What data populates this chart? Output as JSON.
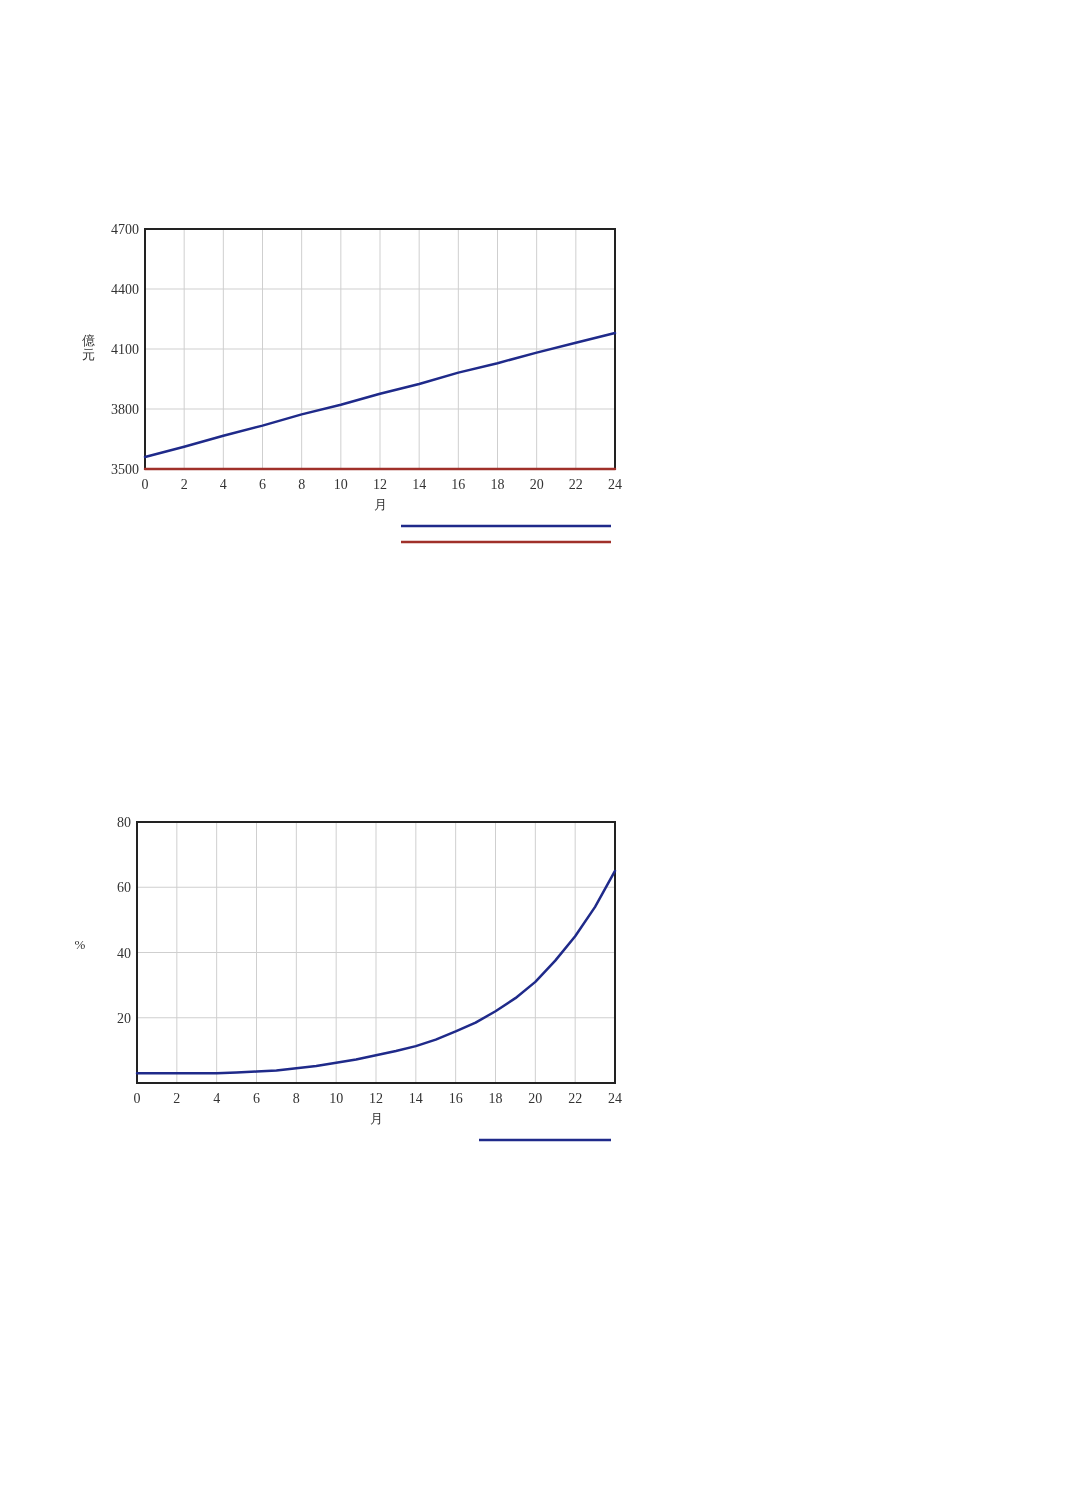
{
  "chart_data": [
    {
      "type": "line",
      "xlabel": "月",
      "ylabel": "億元",
      "x": [
        0,
        2,
        4,
        6,
        8,
        10,
        12,
        14,
        16,
        18,
        20,
        22,
        24
      ],
      "series": [
        {
          "color": "#1f2a8a",
          "values": [
            3560,
            3611,
            3666,
            3717,
            3773,
            3821,
            3876,
            3925,
            3982,
            4029,
            4082,
            4131,
            4180
          ]
        },
        {
          "color": "#a0302a",
          "values": [
            3500,
            3500,
            3500,
            3500,
            3500,
            3500,
            3500,
            3500,
            3500,
            3500,
            3500,
            3500,
            3500
          ]
        }
      ],
      "xlim": [
        0,
        24
      ],
      "xticks": [
        0,
        2,
        4,
        6,
        8,
        10,
        12,
        14,
        16,
        18,
        20,
        22,
        24
      ],
      "ylim": [
        3500,
        4700
      ],
      "yticks": [
        3500,
        3800,
        4100,
        4400,
        4700
      ],
      "grid": true
    },
    {
      "type": "line",
      "xlabel": "月",
      "ylabel": "%",
      "x": [
        0,
        2,
        4,
        5,
        6,
        7,
        8,
        9,
        10,
        11,
        12,
        13,
        14,
        15,
        16,
        17,
        18,
        19,
        20,
        21,
        22,
        23,
        24
      ],
      "series": [
        {
          "color": "#1f2a8a",
          "values": [
            3,
            3,
            3,
            3.2,
            3.5,
            3.8,
            4.5,
            5.2,
            6.2,
            7.2,
            8.5,
            9.8,
            11.3,
            13.3,
            15.8,
            18.5,
            22,
            26,
            31,
            37.5,
            45,
            54,
            65
          ]
        }
      ],
      "xlim": [
        0,
        24
      ],
      "xticks": [
        0,
        2,
        4,
        6,
        8,
        10,
        12,
        14,
        16,
        18,
        20,
        22,
        24
      ],
      "ylim": [
        0,
        80
      ],
      "yticks": [
        20,
        40,
        60,
        80
      ],
      "grid": true
    }
  ]
}
